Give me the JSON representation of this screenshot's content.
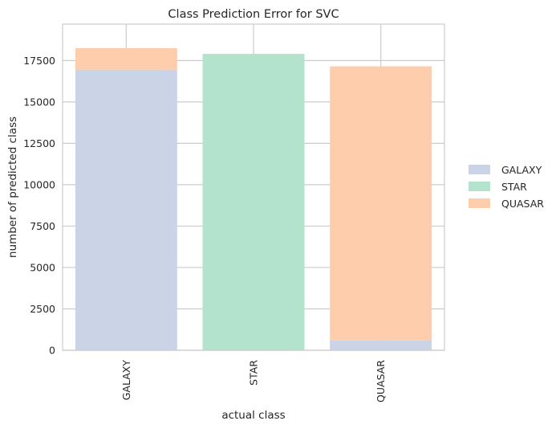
{
  "chart_data": {
    "type": "bar",
    "stacked": true,
    "title": "Class Prediction Error for SVC",
    "xlabel": "actual class",
    "ylabel": "number of predicted class",
    "categories": [
      "GALAXY",
      "STAR",
      "QUASAR"
    ],
    "ylim": [
      0,
      19700
    ],
    "yticks": [
      0,
      2500,
      5000,
      7500,
      10000,
      12500,
      15000,
      17500
    ],
    "grid": true,
    "legend_position": "right",
    "series": [
      {
        "name": "GALAXY",
        "color": "#cad4e6",
        "values": [
          16950,
          0,
          600
        ]
      },
      {
        "name": "STAR",
        "color": "#b3e2cd",
        "values": [
          0,
          17900,
          0
        ]
      },
      {
        "name": "QUASAR",
        "color": "#fdcdac",
        "values": [
          1300,
          0,
          16550
        ]
      }
    ]
  }
}
